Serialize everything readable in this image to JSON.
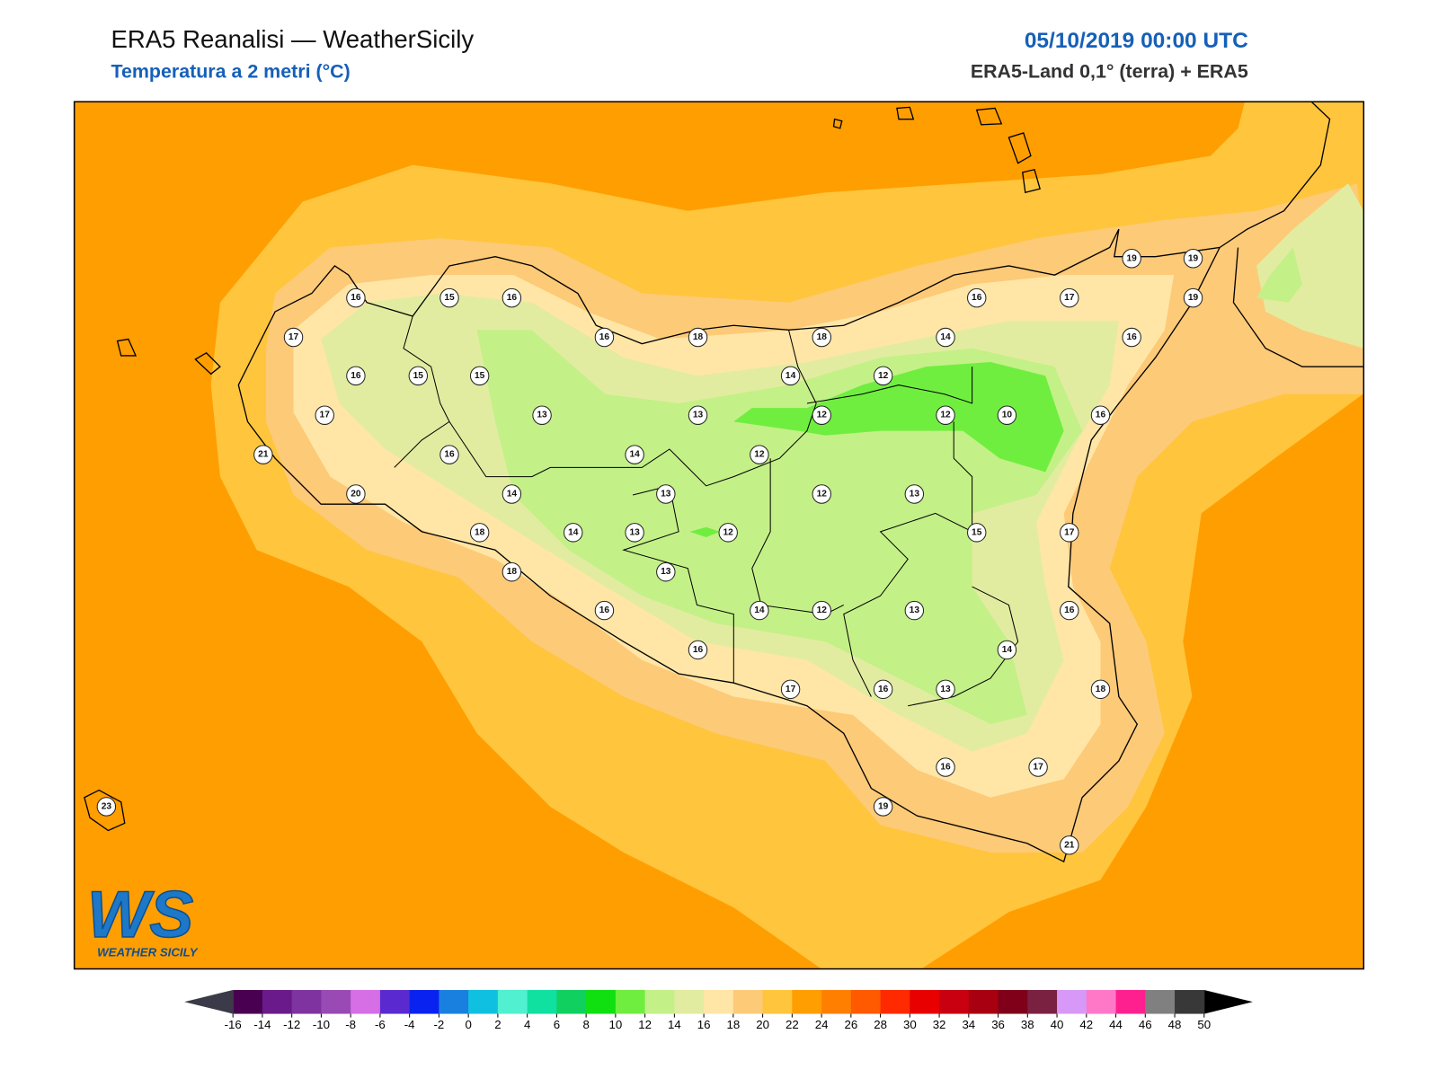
{
  "header": {
    "title": "ERA5 Reanalisi — WeatherSicily",
    "subtitle": "Temperatura a 2 metri (°C)",
    "datetime": "05/10/2019 00:00 UTC",
    "source": "ERA5-Land 0,1° (terra) + ERA5"
  },
  "stations": [
    16,
    15,
    16,
    17,
    16,
    18,
    18,
    16,
    17,
    19,
    19,
    19,
    14,
    16,
    16,
    15,
    15,
    14,
    12,
    17,
    13,
    13,
    12,
    12,
    10,
    16,
    21,
    16,
    14,
    12,
    20,
    14,
    13,
    12,
    13,
    18,
    14,
    13,
    12,
    15,
    17,
    18,
    13,
    16,
    14,
    12,
    13,
    16,
    14,
    16,
    17,
    16,
    13,
    18,
    16,
    17,
    19,
    21,
    23
  ],
  "colorbar": {
    "ticks": [
      -16,
      -14,
      -12,
      -10,
      -8,
      -6,
      -4,
      -2,
      0,
      2,
      4,
      6,
      8,
      10,
      12,
      14,
      16,
      18,
      20,
      22,
      24,
      26,
      28,
      30,
      32,
      34,
      36,
      38,
      40,
      42,
      44,
      46,
      48,
      50
    ],
    "under": "#3a3a48",
    "over": "#000000",
    "colors": [
      "#4a0050",
      "#6a1a8a",
      "#7e33a0",
      "#9a4ab5",
      "#d66ee6",
      "#5a2ad0",
      "#0a22f0",
      "#1a80e0",
      "#10c0e0",
      "#50f0d0",
      "#10e0a0",
      "#10d060",
      "#10e010",
      "#70ee40",
      "#c4f088",
      "#e2eca0",
      "#ffe6a6",
      "#fdca78",
      "#ffc53d",
      "#ff9e00",
      "#ff7f00",
      "#ff5a00",
      "#ff2a00",
      "#e80000",
      "#c80010",
      "#a80010",
      "#80001a",
      "#7a2040",
      "#d898f8",
      "#ff78c8",
      "#ff2090",
      "#808080",
      "#383838"
    ]
  },
  "logo": {
    "mark": "WS",
    "name": "WEATHER SICILY"
  }
}
